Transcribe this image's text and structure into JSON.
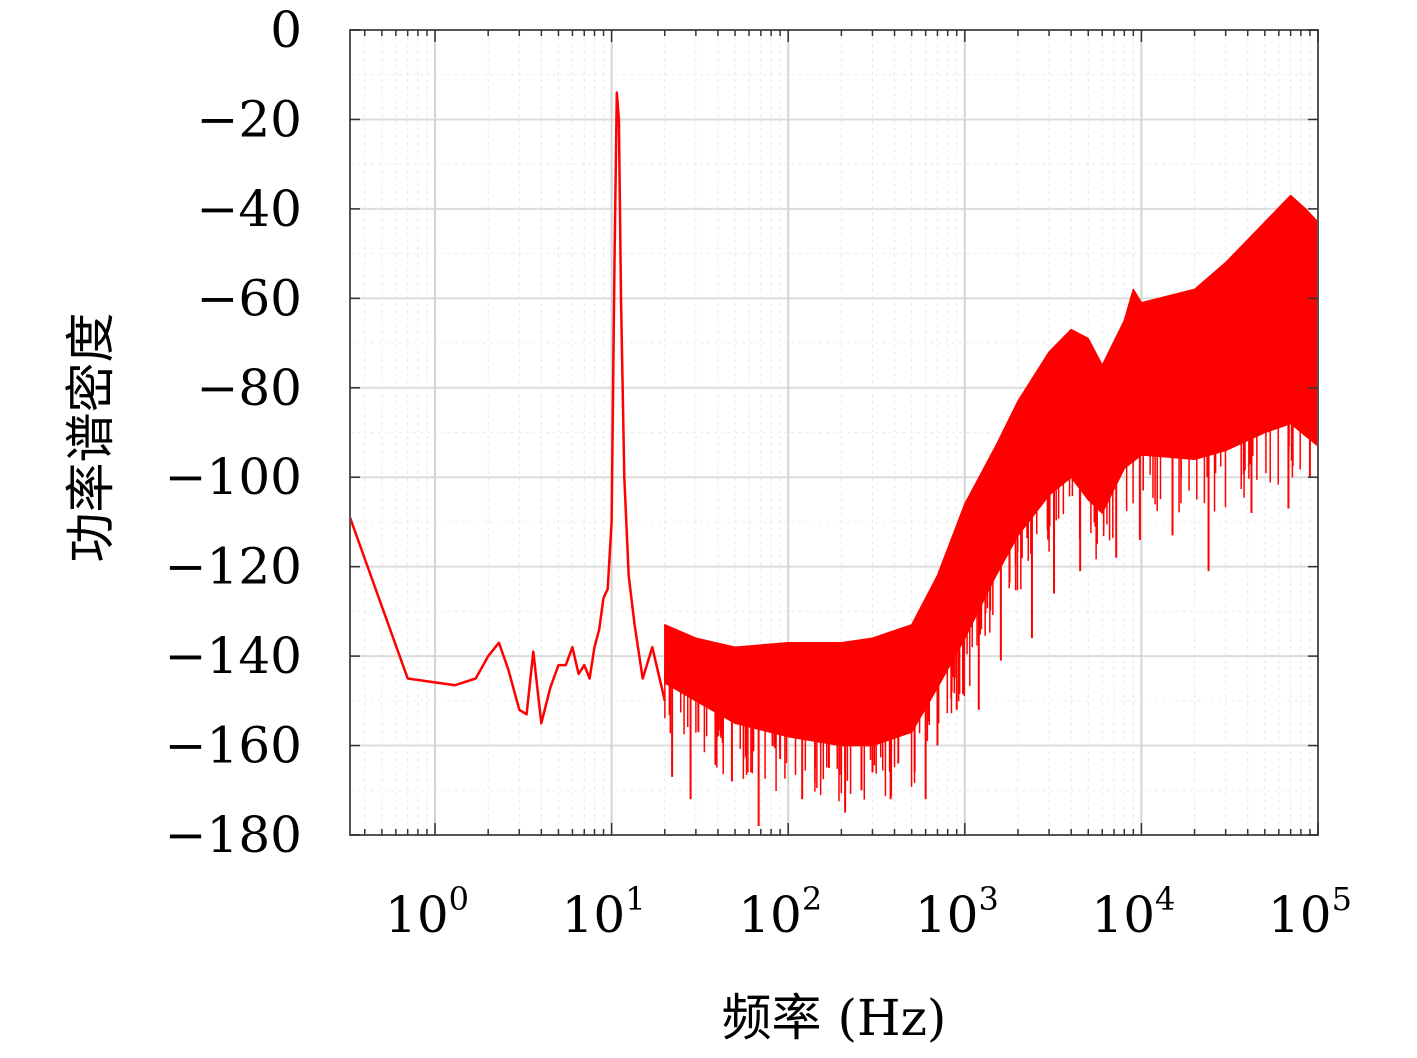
{
  "chart_data": {
    "type": "line",
    "xlabel": "频率 (Hz)",
    "ylabel": "功率谱密度",
    "xscale": "log",
    "xlim": [
      0.33,
      100000
    ],
    "ylim": [
      -180,
      0
    ],
    "grid": true,
    "y_ticks": [
      "0",
      "−20",
      "−40",
      "−60",
      "−80",
      "−100",
      "−120",
      "−140",
      "−160",
      "−180"
    ],
    "x_ticks": [
      {
        "base": "10",
        "exp": "0"
      },
      {
        "base": "10",
        "exp": "1"
      },
      {
        "base": "10",
        "exp": "2"
      },
      {
        "base": "10",
        "exp": "3"
      },
      {
        "base": "10",
        "exp": "4"
      },
      {
        "base": "10",
        "exp": "5"
      }
    ],
    "line_color": "#ff0000",
    "series": [
      {
        "low_freq_line": [
          [
            0.33,
            -109
          ],
          [
            0.7,
            -145
          ],
          [
            1.3,
            -146.5
          ],
          [
            1.7,
            -145
          ],
          [
            2.0,
            -140
          ],
          [
            2.3,
            -137
          ],
          [
            2.6,
            -143
          ],
          [
            3.0,
            -152
          ],
          [
            3.3,
            -153
          ],
          [
            3.6,
            -139
          ],
          [
            4.0,
            -155
          ],
          [
            4.5,
            -147
          ],
          [
            5.0,
            -142
          ],
          [
            5.5,
            -142
          ],
          [
            6.0,
            -138
          ],
          [
            6.5,
            -144
          ],
          [
            7.0,
            -142
          ],
          [
            7.5,
            -145
          ],
          [
            8.0,
            -138
          ],
          [
            8.5,
            -134
          ],
          [
            9.0,
            -127
          ],
          [
            9.5,
            -125
          ],
          [
            10.0,
            -110
          ],
          [
            10.4,
            -50
          ],
          [
            10.7,
            -14
          ],
          [
            11.0,
            -20
          ],
          [
            11.3,
            -60
          ],
          [
            11.8,
            -100
          ],
          [
            12.5,
            -122
          ],
          [
            13.5,
            -133
          ],
          [
            15.0,
            -145
          ],
          [
            17.0,
            -138
          ],
          [
            20.0,
            -150
          ]
        ],
        "upper_envelope": [
          [
            20,
            -133
          ],
          [
            30,
            -136
          ],
          [
            50,
            -138
          ],
          [
            100,
            -137
          ],
          [
            200,
            -137
          ],
          [
            300,
            -136
          ],
          [
            500,
            -133
          ],
          [
            700,
            -122
          ],
          [
            1000,
            -106
          ],
          [
            1500,
            -93
          ],
          [
            2000,
            -83
          ],
          [
            3000,
            -72
          ],
          [
            4000,
            -67
          ],
          [
            5000,
            -69
          ],
          [
            6000,
            -75
          ],
          [
            8000,
            -65
          ],
          [
            9000,
            -58
          ],
          [
            10000,
            -61
          ],
          [
            20000,
            -58
          ],
          [
            30000,
            -52
          ],
          [
            50000,
            -43
          ],
          [
            70000,
            -37
          ],
          [
            85000,
            -40
          ],
          [
            100000,
            -43
          ]
        ],
        "lower_envelope": [
          [
            20,
            -146
          ],
          [
            30,
            -150
          ],
          [
            50,
            -155
          ],
          [
            100,
            -158
          ],
          [
            200,
            -160
          ],
          [
            300,
            -160
          ],
          [
            500,
            -157
          ],
          [
            700,
            -147
          ],
          [
            1000,
            -136
          ],
          [
            1500,
            -122
          ],
          [
            2000,
            -113
          ],
          [
            3000,
            -104
          ],
          [
            4000,
            -100
          ],
          [
            5000,
            -105
          ],
          [
            6000,
            -108
          ],
          [
            8000,
            -98
          ],
          [
            10000,
            -95
          ],
          [
            20000,
            -96
          ],
          [
            30000,
            -94
          ],
          [
            50000,
            -90
          ],
          [
            70000,
            -88
          ],
          [
            100000,
            -93
          ]
        ],
        "spikes": [
          [
            22,
            -167
          ],
          [
            28,
            -172
          ],
          [
            40,
            -158
          ],
          [
            48,
            -168
          ],
          [
            68,
            -178
          ],
          [
            90,
            -163
          ],
          [
            120,
            -172
          ],
          [
            170,
            -165
          ],
          [
            210,
            -175
          ],
          [
            260,
            -170
          ],
          [
            300,
            -166
          ],
          [
            380,
            -172
          ],
          [
            420,
            -164
          ],
          [
            520,
            -166
          ],
          [
            600,
            -172
          ],
          [
            700,
            -160
          ],
          [
            900,
            -152
          ],
          [
            1200,
            -152
          ],
          [
            1600,
            -141
          ],
          [
            2400,
            -136
          ],
          [
            3200,
            -126
          ],
          [
            4500,
            -121
          ],
          [
            7200,
            -118
          ],
          [
            9800,
            -114
          ],
          [
            15000,
            -113
          ],
          [
            24000,
            -121
          ],
          [
            42000,
            -108
          ],
          [
            68000,
            -107
          ],
          [
            90000,
            -100
          ]
        ]
      }
    ]
  }
}
